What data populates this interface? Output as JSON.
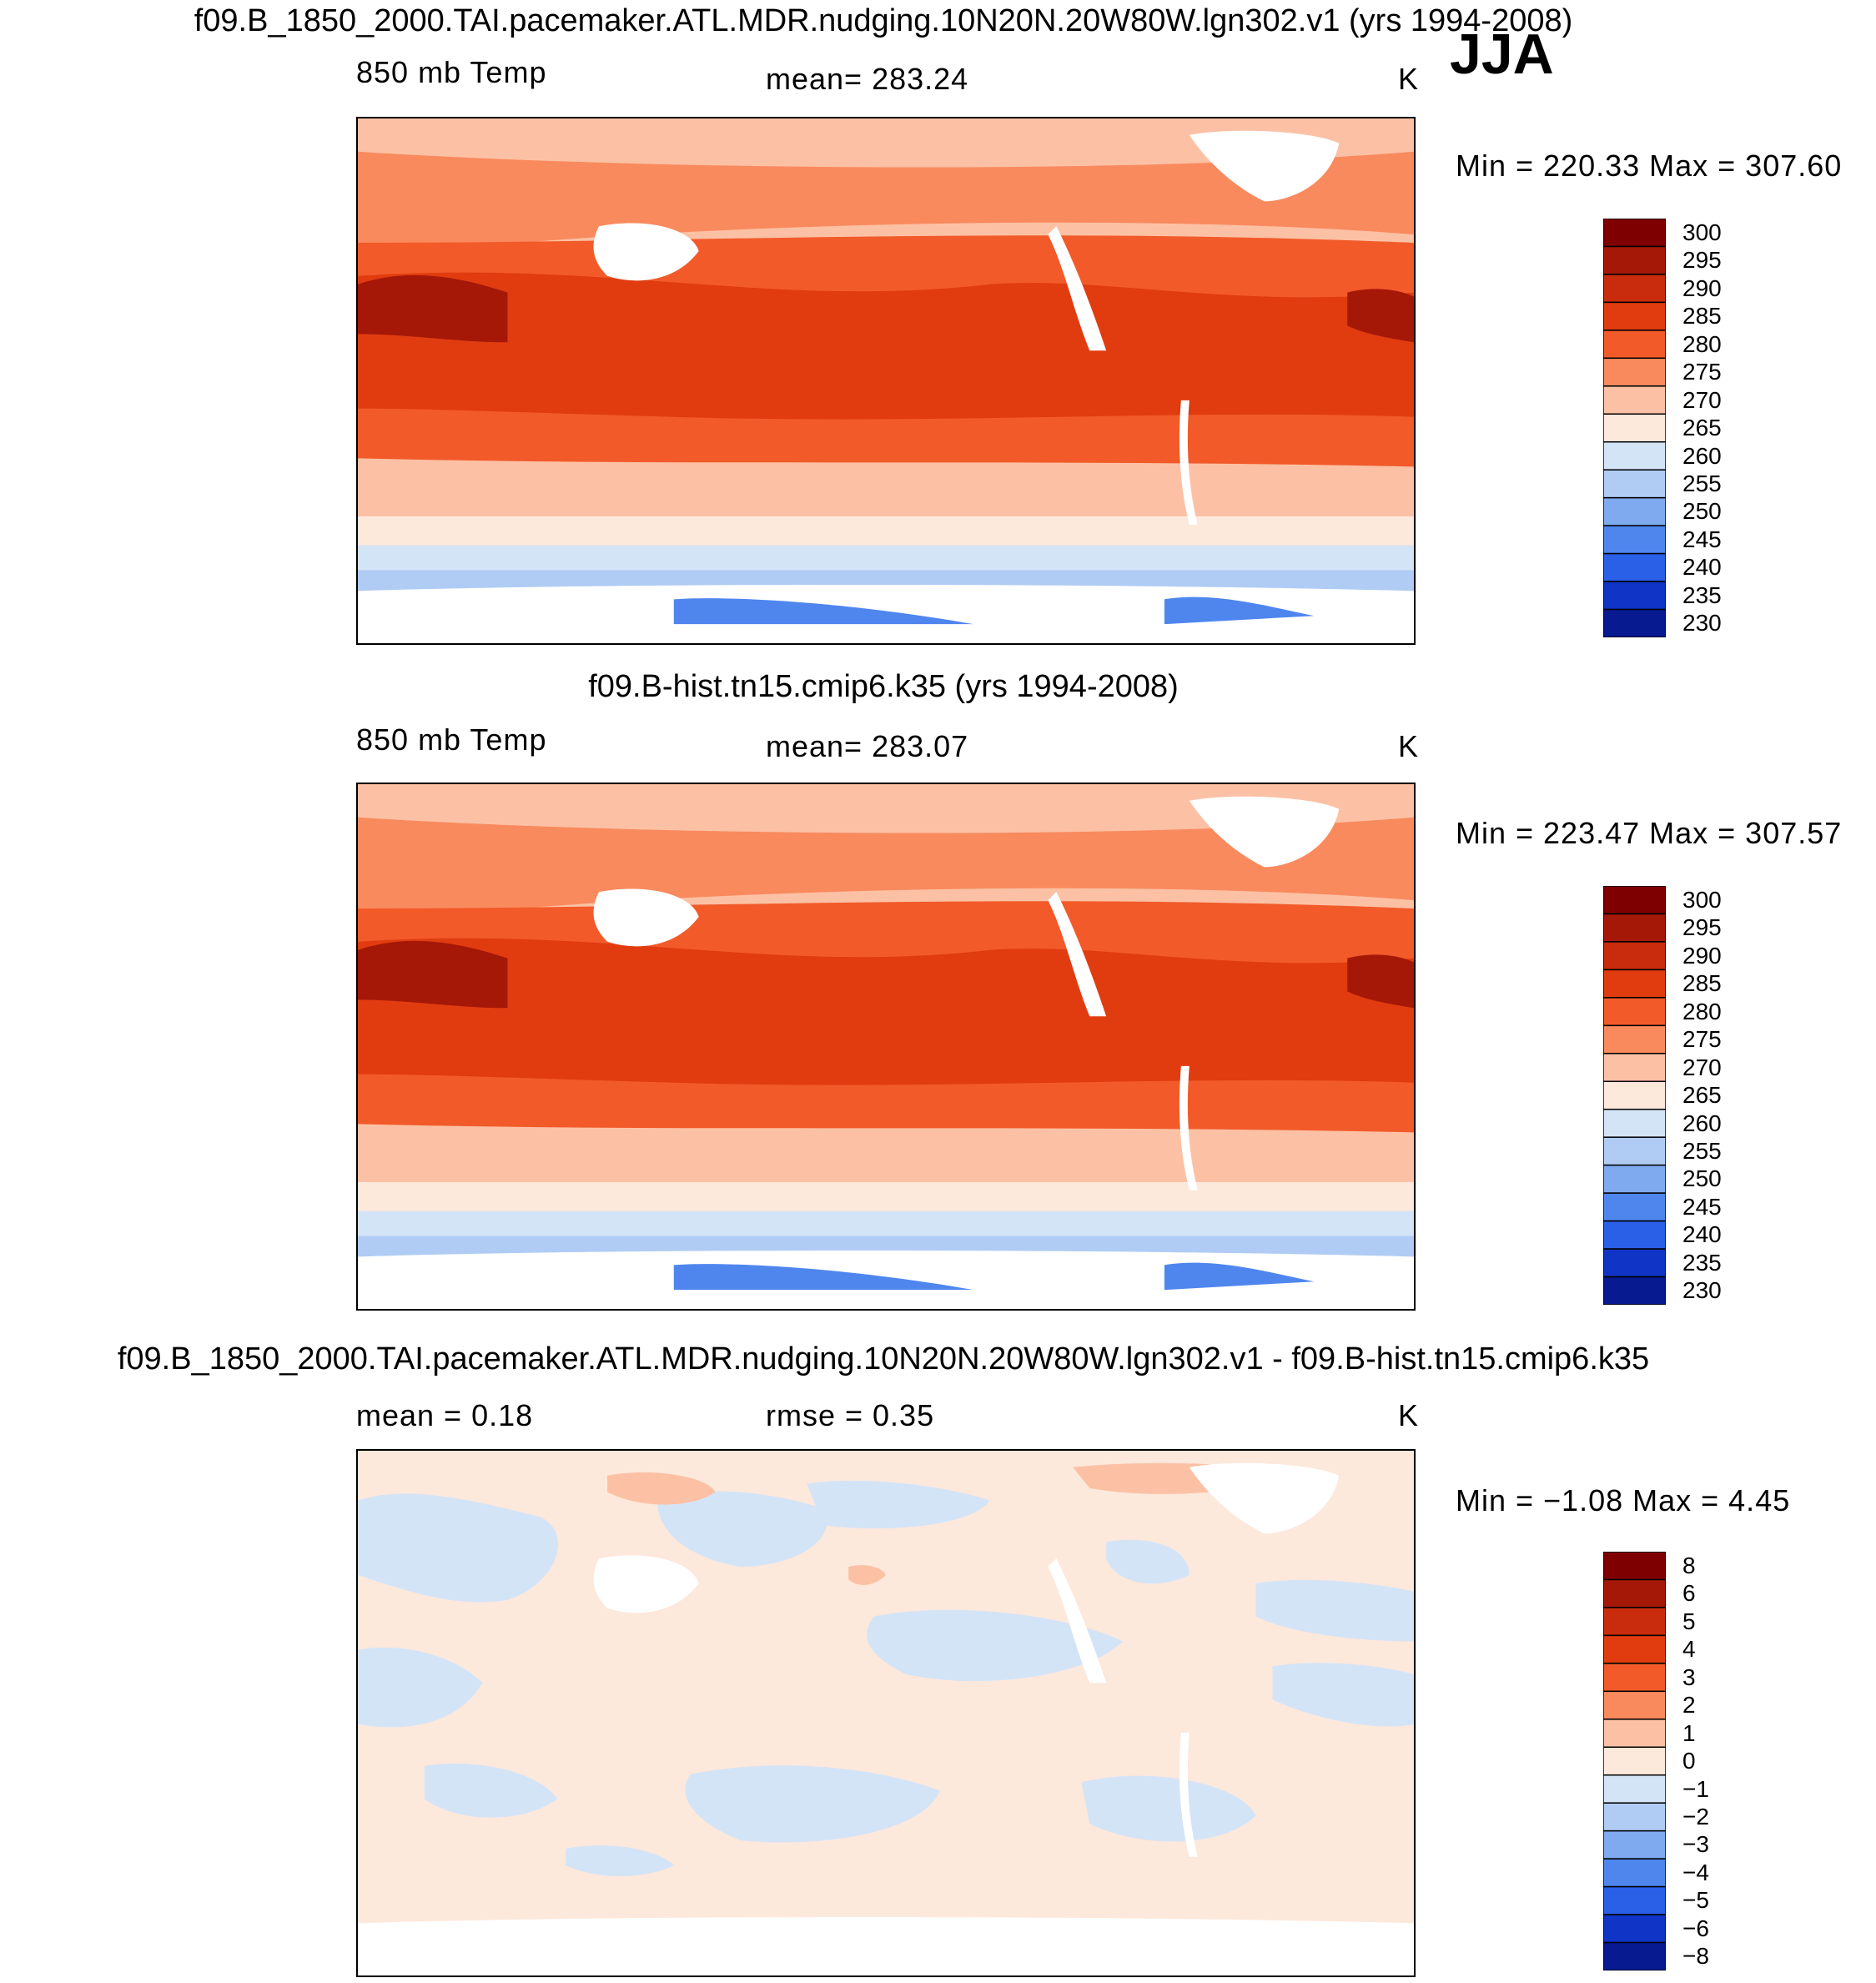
{
  "season": "JJA",
  "panels": [
    {
      "title": "f09.B_1850_2000.TAI.pacemaker.ATL.MDR.nudging.10N20N.20W80W.lgn302.v1 (yrs 1994-2008)",
      "left_label": "850 mb Temp",
      "center_label": "mean=  283.24",
      "units": "K",
      "minmax": "Min  =  220.33  Max  =  307.60",
      "levels": [
        "300",
        "295",
        "290",
        "285",
        "280",
        "275",
        "270",
        "265",
        "260",
        "255",
        "250",
        "245",
        "240",
        "235",
        "230"
      ],
      "colors": [
        "#7f0000",
        "#a51808",
        "#c92c0c",
        "#e03c10",
        "#f25a2a",
        "#f98a5e",
        "#fcc1a5",
        "#fde8dc",
        "#d4e4f7",
        "#b0ccf4",
        "#7faaf0",
        "#4f86ee",
        "#2a5fe8",
        "#1034c6",
        "#081a90"
      ]
    },
    {
      "title": "f09.B-hist.tn15.cmip6.k35 (yrs 1994-2008)",
      "left_label": "850 mb Temp",
      "center_label": "mean=  283.07",
      "units": "K",
      "minmax": "Min  =  223.47  Max  =  307.57",
      "levels": [
        "300",
        "295",
        "290",
        "285",
        "280",
        "275",
        "270",
        "265",
        "260",
        "255",
        "250",
        "245",
        "240",
        "235",
        "230"
      ],
      "colors": [
        "#7f0000",
        "#a51808",
        "#c92c0c",
        "#e03c10",
        "#f25a2a",
        "#f98a5e",
        "#fcc1a5",
        "#fde8dc",
        "#d4e4f7",
        "#b0ccf4",
        "#7faaf0",
        "#4f86ee",
        "#2a5fe8",
        "#1034c6",
        "#081a90"
      ]
    },
    {
      "title": "f09.B_1850_2000.TAI.pacemaker.ATL.MDR.nudging.10N20N.20W80W.lgn302.v1 - f09.B-hist.tn15.cmip6.k35",
      "left_label": "mean =     0.18",
      "center_label": "rmse =     0.35",
      "units": "K",
      "minmax": "Min  =   −1.08  Max  =     4.45",
      "levels": [
        "8",
        "6",
        "5",
        "4",
        "3",
        "2",
        "1",
        "0",
        "−1",
        "−2",
        "−3",
        "−4",
        "−5",
        "−6",
        "−8"
      ],
      "colors": [
        "#7f0000",
        "#a51808",
        "#c92c0c",
        "#e03c10",
        "#f25a2a",
        "#f98a5e",
        "#fcc1a5",
        "#fde8dc",
        "#d4e4f7",
        "#b0ccf4",
        "#7faaf0",
        "#4f86ee",
        "#2a5fe8",
        "#1034c6",
        "#081a90"
      ]
    }
  ],
  "chart_data": {
    "type": "heatmap",
    "season": "JJA",
    "variable": "850 mb Temp",
    "units": "K",
    "panels": [
      {
        "case": "f09.B_1850_2000.TAI.pacemaker.ATL.MDR.nudging.10N20N.20W80W.lgn302.v1",
        "years": "1994-2008",
        "mean": 283.24,
        "min": 220.33,
        "max": 307.6,
        "contour_levels": [
          230,
          235,
          240,
          245,
          250,
          255,
          260,
          265,
          270,
          275,
          280,
          285,
          290,
          295,
          300
        ]
      },
      {
        "case": "f09.B-hist.tn15.cmip6.k35",
        "years": "1994-2008",
        "mean": 283.07,
        "min": 223.47,
        "max": 307.57,
        "contour_levels": [
          230,
          235,
          240,
          245,
          250,
          255,
          260,
          265,
          270,
          275,
          280,
          285,
          290,
          295,
          300
        ]
      },
      {
        "case": "difference",
        "mean": 0.18,
        "rmse": 0.35,
        "min": -1.08,
        "max": 4.45,
        "contour_levels": [
          -8,
          -6,
          -5,
          -4,
          -3,
          -2,
          -1,
          0,
          1,
          2,
          3,
          4,
          5,
          6,
          8
        ]
      }
    ]
  }
}
